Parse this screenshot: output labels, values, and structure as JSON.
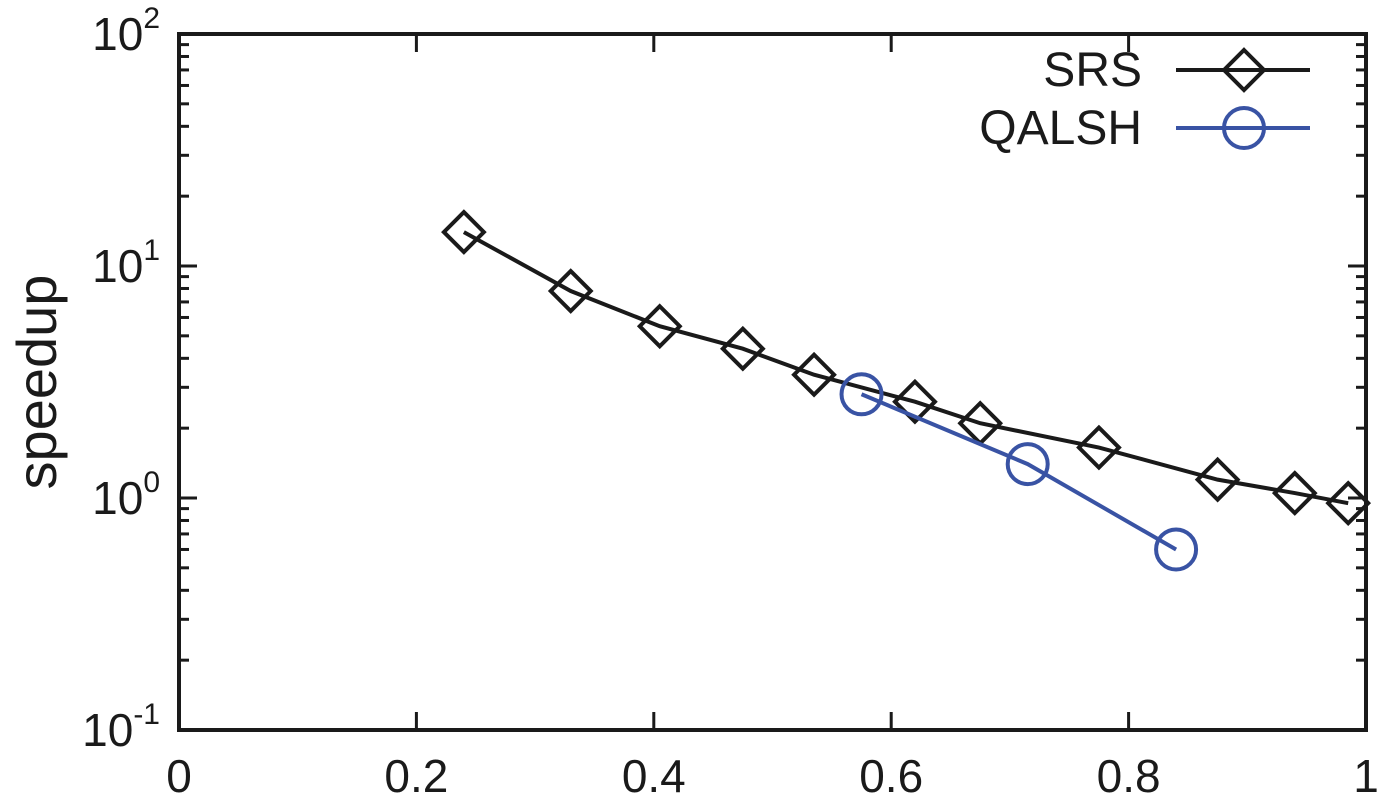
{
  "chart_data": {
    "type": "line",
    "title": "",
    "xlabel": "",
    "ylabel": "speedup",
    "xlim": [
      0,
      1
    ],
    "ylim": [
      0.1,
      100
    ],
    "yscale": "log",
    "grid": false,
    "legend_position": "top-right",
    "x_ticks": [
      {
        "value": 0,
        "label": "0"
      },
      {
        "value": 0.2,
        "label": "0.2"
      },
      {
        "value": 0.4,
        "label": "0.4"
      },
      {
        "value": 0.6,
        "label": "0.6"
      },
      {
        "value": 0.8,
        "label": "0.8"
      },
      {
        "value": 1,
        "label": "1"
      }
    ],
    "y_ticks": [
      {
        "value": 0.1,
        "base": "10",
        "exp": "-1"
      },
      {
        "value": 1,
        "base": "10",
        "exp": "0"
      },
      {
        "value": 10,
        "base": "10",
        "exp": "1"
      },
      {
        "value": 100,
        "base": "10",
        "exp": "2"
      }
    ],
    "series": [
      {
        "name": "SRS",
        "color": "#1a1a1a",
        "marker": "diamond",
        "x": [
          0.24,
          0.33,
          0.405,
          0.475,
          0.535,
          0.62,
          0.675,
          0.775,
          0.875,
          0.94,
          0.985
        ],
        "y": [
          14.0,
          7.8,
          5.5,
          4.4,
          3.4,
          2.6,
          2.1,
          1.65,
          1.2,
          1.05,
          0.95
        ]
      },
      {
        "name": "QALSH",
        "color": "#3953a4",
        "marker": "circle",
        "x": [
          0.575,
          0.715,
          0.84
        ],
        "y": [
          2.8,
          1.4,
          0.6
        ]
      }
    ]
  }
}
